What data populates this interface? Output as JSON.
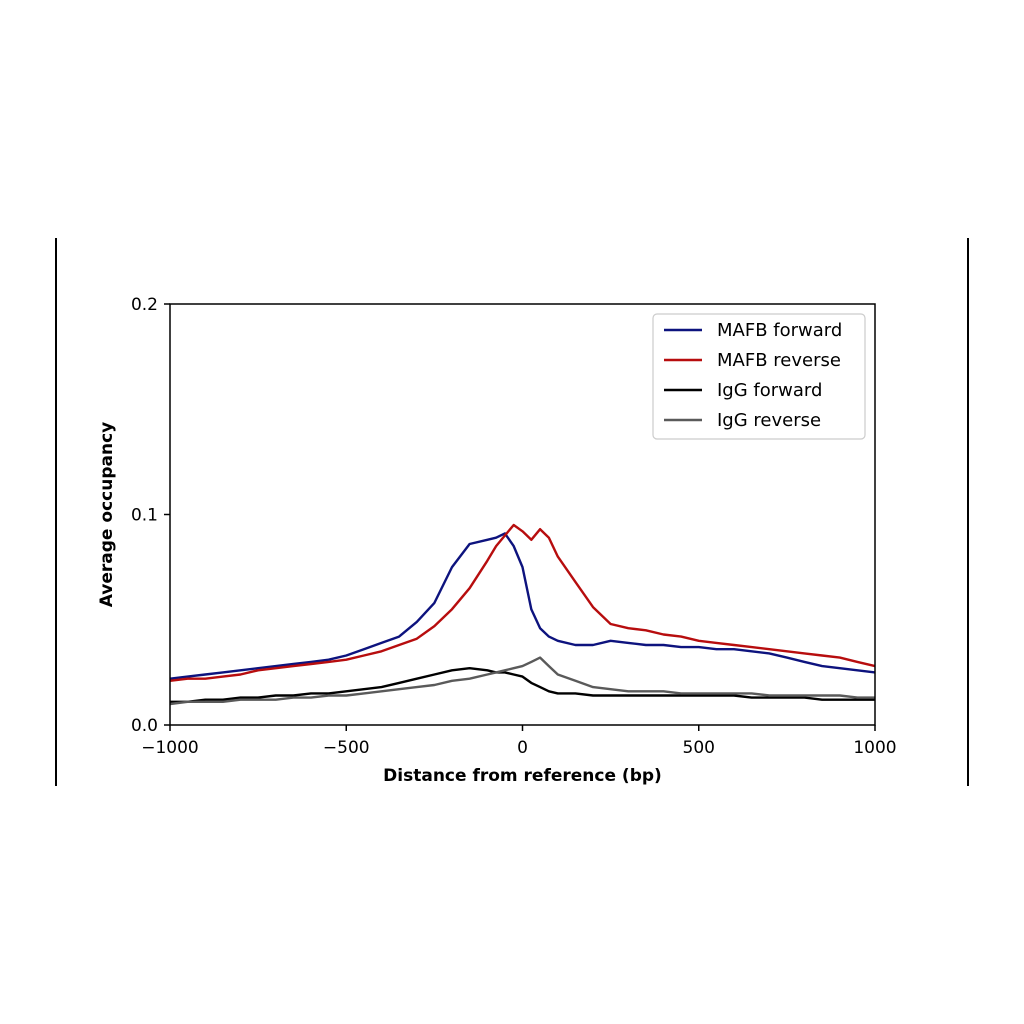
{
  "chart_data": {
    "type": "line",
    "title": "",
    "xlabel": "Distance from reference (bp)",
    "ylabel": "Average occupancy",
    "xlim": [
      -1000,
      1000
    ],
    "ylim": [
      0,
      0.2
    ],
    "x_ticks": [
      -1000,
      -500,
      0,
      500,
      1000
    ],
    "x_tick_labels": [
      "−1000",
      "−500",
      "0",
      "500",
      "1000"
    ],
    "y_ticks": [
      0,
      0.1,
      0.2
    ],
    "y_tick_labels": [
      "0.0",
      "0.1",
      "0.2"
    ],
    "grid": false,
    "legend": "top-right",
    "x": [
      -1000,
      -950,
      -900,
      -850,
      -800,
      -750,
      -700,
      -650,
      -600,
      -550,
      -500,
      -450,
      -400,
      -350,
      -300,
      -250,
      -200,
      -150,
      -100,
      -75,
      -50,
      -25,
      0,
      25,
      50,
      75,
      100,
      150,
      200,
      250,
      300,
      350,
      400,
      450,
      500,
      550,
      600,
      650,
      700,
      750,
      800,
      850,
      900,
      950,
      1000
    ],
    "series": [
      {
        "name": "MAFB forward",
        "color": "#0d137e",
        "values": [
          0.022,
          0.023,
          0.024,
          0.025,
          0.026,
          0.027,
          0.028,
          0.029,
          0.03,
          0.031,
          0.033,
          0.036,
          0.039,
          0.042,
          0.049,
          0.058,
          0.075,
          0.086,
          0.088,
          0.089,
          0.091,
          0.085,
          0.075,
          0.055,
          0.046,
          0.042,
          0.04,
          0.038,
          0.038,
          0.04,
          0.039,
          0.038,
          0.038,
          0.037,
          0.037,
          0.036,
          0.036,
          0.035,
          0.034,
          0.032,
          0.03,
          0.028,
          0.027,
          0.026,
          0.025
        ]
      },
      {
        "name": "MAFB reverse",
        "color": "#b70d0e",
        "values": [
          0.021,
          0.022,
          0.022,
          0.023,
          0.024,
          0.026,
          0.027,
          0.028,
          0.029,
          0.03,
          0.031,
          0.033,
          0.035,
          0.038,
          0.041,
          0.047,
          0.055,
          0.065,
          0.078,
          0.085,
          0.09,
          0.095,
          0.092,
          0.088,
          0.093,
          0.089,
          0.08,
          0.068,
          0.056,
          0.048,
          0.046,
          0.045,
          0.043,
          0.042,
          0.04,
          0.039,
          0.038,
          0.037,
          0.036,
          0.035,
          0.034,
          0.033,
          0.032,
          0.03,
          0.028
        ]
      },
      {
        "name": "IgG forward",
        "color": "#000000",
        "values": [
          0.011,
          0.011,
          0.012,
          0.012,
          0.013,
          0.013,
          0.014,
          0.014,
          0.015,
          0.015,
          0.016,
          0.017,
          0.018,
          0.02,
          0.022,
          0.024,
          0.026,
          0.027,
          0.026,
          0.025,
          0.025,
          0.024,
          0.023,
          0.02,
          0.018,
          0.016,
          0.015,
          0.015,
          0.014,
          0.014,
          0.014,
          0.014,
          0.014,
          0.014,
          0.014,
          0.014,
          0.014,
          0.013,
          0.013,
          0.013,
          0.013,
          0.012,
          0.012,
          0.012,
          0.012
        ]
      },
      {
        "name": "IgG reverse",
        "color": "#5a5a5a",
        "values": [
          0.01,
          0.011,
          0.011,
          0.011,
          0.012,
          0.012,
          0.012,
          0.013,
          0.013,
          0.014,
          0.014,
          0.015,
          0.016,
          0.017,
          0.018,
          0.019,
          0.021,
          0.022,
          0.024,
          0.025,
          0.026,
          0.027,
          0.028,
          0.03,
          0.032,
          0.028,
          0.024,
          0.021,
          0.018,
          0.017,
          0.016,
          0.016,
          0.016,
          0.015,
          0.015,
          0.015,
          0.015,
          0.015,
          0.014,
          0.014,
          0.014,
          0.014,
          0.014,
          0.013,
          0.013
        ]
      }
    ]
  }
}
